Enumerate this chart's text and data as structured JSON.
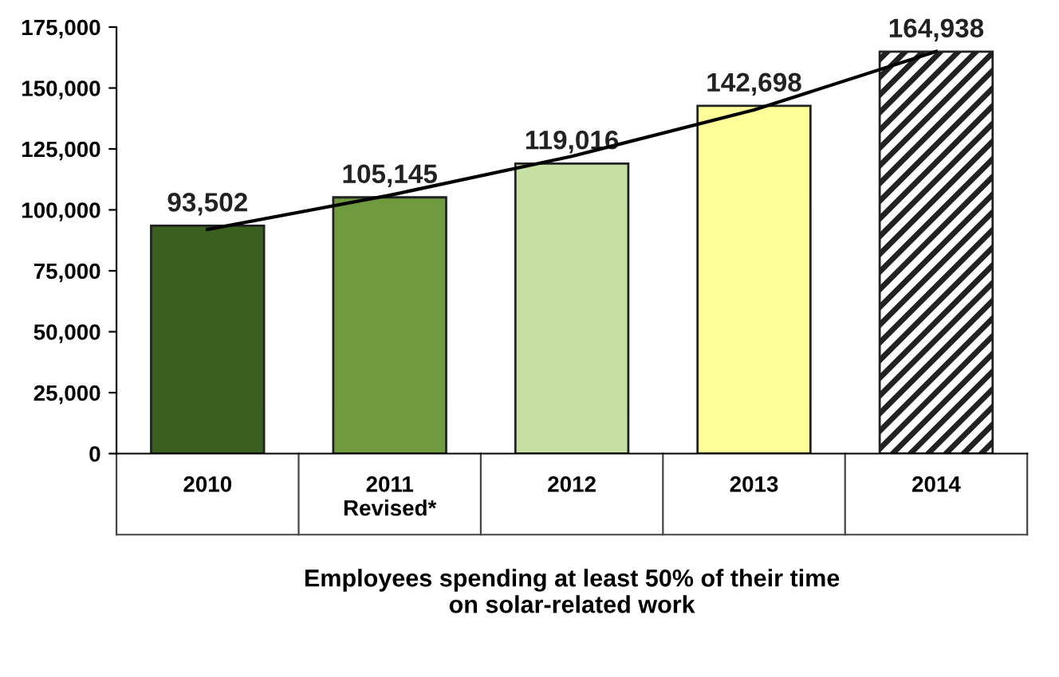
{
  "chart_data": {
    "type": "bar",
    "categories": [
      "2010",
      "2011\nRevised*",
      "2012",
      "2013",
      "2014"
    ],
    "xlabel": "Employees spending at least 50% of their time\non solar-related work",
    "series": [
      {
        "type": "bar",
        "values": [
          93502,
          105145,
          119016,
          142698,
          164938
        ],
        "value_labels": [
          "93,502",
          "105,145",
          "119,016",
          "142,698",
          "164,938"
        ],
        "colors": [
          "#3a5f1e",
          "#6f9a3e",
          "#c5e0a2",
          "#ffff99",
          "#222222"
        ]
      },
      {
        "type": "line",
        "color": "#000000",
        "values": [
          92000,
          106000,
          122000,
          141000,
          165000
        ]
      }
    ],
    "ylim": [
      0,
      175000
    ],
    "yticks": [
      {
        "value": 0,
        "label": "0"
      },
      {
        "value": 25000,
        "label": "25,000"
      },
      {
        "value": 50000,
        "label": "50,000"
      },
      {
        "value": 75000,
        "label": "75,000"
      },
      {
        "value": 100000,
        "label": "100,000"
      },
      {
        "value": 125000,
        "label": "125,000"
      },
      {
        "value": 150000,
        "label": "150,000"
      },
      {
        "value": 175000,
        "label": "175,000"
      }
    ],
    "grid": false,
    "legend": false
  }
}
